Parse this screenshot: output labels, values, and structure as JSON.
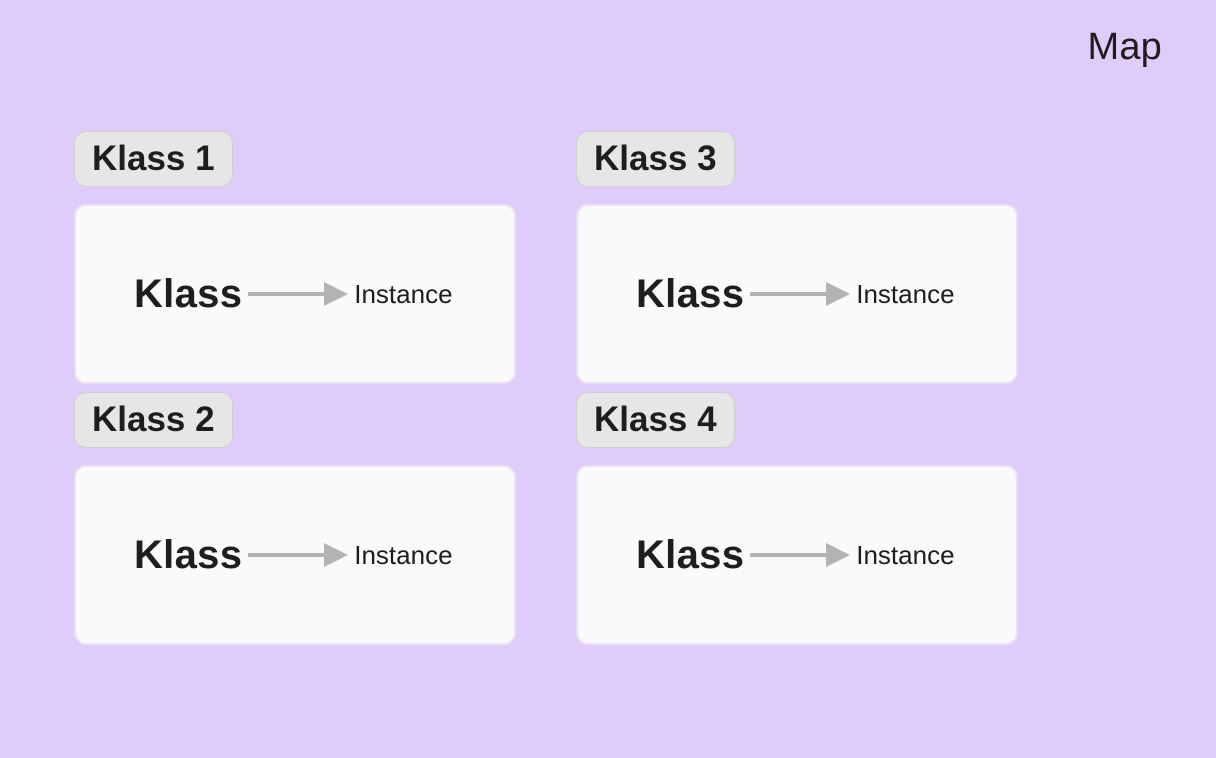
{
  "page": {
    "title": "Map",
    "background": "#e0ccfa",
    "card_background": "#fafafa",
    "tag_background": "#e6e6e6",
    "arrow_color": "#b3b3b3"
  },
  "sections": [
    {
      "tag": "Klass 1",
      "source": "Klass",
      "target": "Instance",
      "connector": "arrow-right-icon"
    },
    {
      "tag": "Klass 2",
      "source": "Klass",
      "target": "Instance",
      "connector": "arrow-right-icon"
    },
    {
      "tag": "Klass 3",
      "source": "Klass",
      "target": "Instance",
      "connector": "arrow-right-icon"
    },
    {
      "tag": "Klass 4",
      "source": "Klass",
      "target": "Instance",
      "connector": "arrow-right-icon"
    }
  ]
}
